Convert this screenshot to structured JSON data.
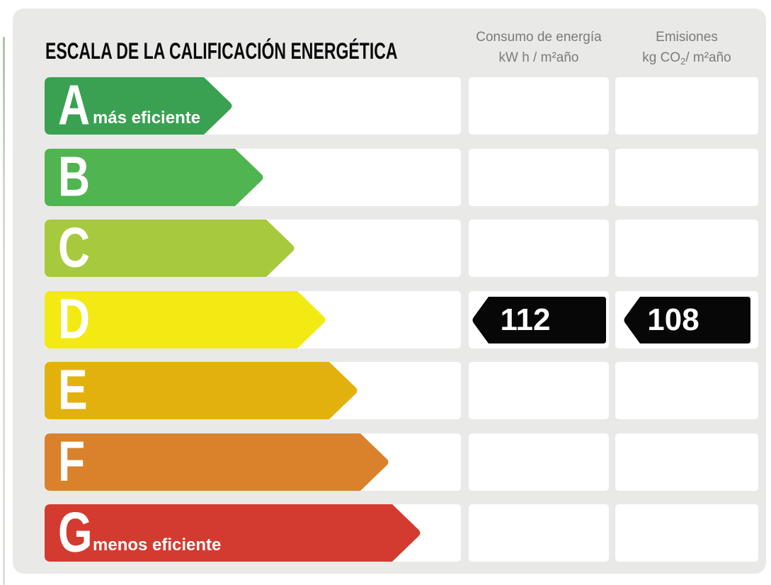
{
  "title": "ESCALA DE LA CALIFICACIÓN ENERGÉTICA",
  "columns": {
    "consumo": {
      "line1": "Consumo de energía",
      "line2": "kW h / m²año"
    },
    "emisiones": {
      "line1": "Emisiones",
      "unit_pre": "kg CO",
      "unit_sub": "2",
      "unit_post": "/ m²año"
    }
  },
  "scale": {
    "badge_color": "#070707",
    "value_text_color": "#ffffff",
    "grades": [
      {
        "letter": "A",
        "note": "más eficiente",
        "color": "#3aa152",
        "arrow_width": 267
      },
      {
        "letter": "B",
        "color": "#50b451",
        "arrow_width": 311
      },
      {
        "letter": "C",
        "color": "#a7c93d",
        "arrow_width": 355
      },
      {
        "letter": "D",
        "color": "#f2ea12",
        "arrow_width": 399,
        "consumo_value": "112",
        "emisiones_value": "108"
      },
      {
        "letter": "E",
        "color": "#e3b10e",
        "arrow_width": 444
      },
      {
        "letter": "F",
        "color": "#da812c",
        "arrow_width": 488
      },
      {
        "letter": "G",
        "note": "menos eficiente",
        "color": "#d43b30",
        "arrow_width": 533
      }
    ]
  },
  "rating": {
    "grade": "D",
    "consumo_kwh_m2_year": 112,
    "emisiones_kgco2_m2_year": 108
  },
  "chart_data": {
    "type": "bar",
    "orientation": "horizontal",
    "title": "ESCALA DE LA CALIFICACIÓN ENERGÉTICA",
    "categories": [
      "A",
      "B",
      "C",
      "D",
      "E",
      "F",
      "G"
    ],
    "category_colors": [
      "#3aa152",
      "#50b451",
      "#a7c93d",
      "#f2ea12",
      "#e3b10e",
      "#da812c",
      "#d43b30"
    ],
    "bar_relative_lengths": [
      267,
      311,
      355,
      399,
      444,
      488,
      533
    ],
    "annotations": [
      {
        "category": "A",
        "text": "más eficiente"
      },
      {
        "category": "G",
        "text": "menos eficiente"
      }
    ],
    "series": [
      {
        "name": "Consumo de energía kW h / m²año",
        "values": [
          null,
          null,
          null,
          112,
          null,
          null,
          null
        ]
      },
      {
        "name": "Emisiones kg CO₂/ m²año",
        "values": [
          null,
          null,
          null,
          108,
          null,
          null,
          null
        ]
      }
    ],
    "rated_grade": "D",
    "legend_position": "top",
    "grid": false
  }
}
